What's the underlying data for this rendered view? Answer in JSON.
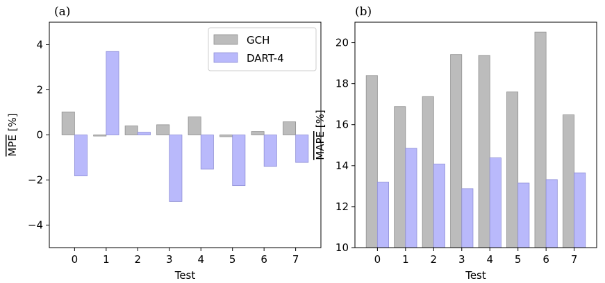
{
  "chart_data": [
    {
      "type": "bar",
      "panel_label": "(a)",
      "xlabel": "Test",
      "ylabel": "MPE [%]",
      "ylabel_overline": "MPE",
      "ylabel_unit": "[%]",
      "categories": [
        "0",
        "1",
        "2",
        "3",
        "4",
        "5",
        "6",
        "7"
      ],
      "ylim": [
        -5,
        5
      ],
      "yticks": [
        -4,
        -2,
        0,
        2,
        4
      ],
      "ytick_labels": [
        "−4",
        "−2",
        "0",
        "2",
        "4"
      ],
      "series": [
        {
          "name": "GCH",
          "color": "#bcbcbc",
          "edge": "#8f8f8f",
          "values": [
            1.02,
            -0.05,
            0.4,
            0.45,
            0.8,
            -0.08,
            0.15,
            0.58
          ]
        },
        {
          "name": "DART-4",
          "color": "#b9b9fb",
          "edge": "#8e8ed6",
          "values": [
            -1.82,
            3.7,
            0.12,
            -2.95,
            -1.52,
            -2.25,
            -1.4,
            -1.22
          ]
        }
      ],
      "legend": {
        "location": "top-right",
        "entries": [
          "GCH",
          "DART-4"
        ]
      },
      "grid": false
    },
    {
      "type": "bar",
      "panel_label": "(b)",
      "xlabel": "Test",
      "ylabel": "MAPE [%]",
      "ylabel_overline": "MAPE",
      "ylabel_unit": "[%]",
      "categories": [
        "0",
        "1",
        "2",
        "3",
        "4",
        "5",
        "6",
        "7"
      ],
      "ylim": [
        10,
        21
      ],
      "yticks": [
        10,
        12,
        14,
        16,
        18,
        20
      ],
      "ytick_labels": [
        "10",
        "12",
        "14",
        "16",
        "18",
        "20"
      ],
      "series": [
        {
          "name": "GCH",
          "color": "#bcbcbc",
          "edge": "#8f8f8f",
          "values": [
            18.4,
            16.88,
            17.37,
            19.42,
            19.38,
            17.6,
            20.52,
            16.48
          ]
        },
        {
          "name": "DART-4",
          "color": "#b9b9fb",
          "edge": "#8e8ed6",
          "values": [
            13.2,
            14.85,
            14.08,
            12.88,
            14.38,
            13.15,
            13.32,
            13.65
          ]
        }
      ],
      "grid": false
    }
  ]
}
